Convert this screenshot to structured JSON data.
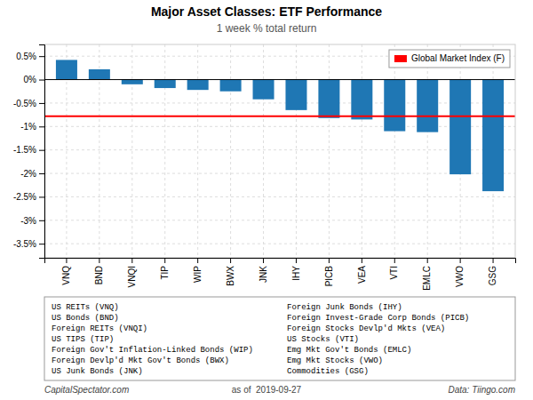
{
  "chart_data": {
    "type": "bar",
    "title": "Major Asset Classes: ETF Performance",
    "subtitle": "1 week % total return",
    "categories": [
      "VNQ",
      "BND",
      "VNQI",
      "TIP",
      "WIP",
      "BWX",
      "JNK",
      "IHY",
      "PICB",
      "VEA",
      "VTI",
      "EMLC",
      "VWO",
      "GSG"
    ],
    "values": [
      0.42,
      0.22,
      -0.1,
      -0.18,
      -0.22,
      -0.25,
      -0.42,
      -0.65,
      -0.82,
      -0.85,
      -1.1,
      -1.12,
      -2.02,
      -2.38
    ],
    "ylim": [
      -3.8,
      0.75
    ],
    "yticks": [
      {
        "value": 0.5,
        "label": "0.5%"
      },
      {
        "value": 0.0,
        "label": "0%"
      },
      {
        "value": -0.5,
        "label": "-0.5%"
      },
      {
        "value": -1.0,
        "label": "-1%"
      },
      {
        "value": -1.5,
        "label": "-1.5%"
      },
      {
        "value": -2.0,
        "label": "-2%"
      },
      {
        "value": -2.5,
        "label": "-2.5%"
      },
      {
        "value": -3.0,
        "label": "-3%"
      },
      {
        "value": -3.5,
        "label": "-3.5%"
      }
    ],
    "grid": true,
    "legend": "upper right",
    "reference_line": {
      "name": "Global Market Index (F)",
      "value": -0.78,
      "color": "#ff0000"
    },
    "annotations": [
      "US REITs (VNQ)",
      "US Bonds (BND)",
      "Foreign REITs (VNQI)",
      "US TIPS (TIP)",
      "Foreign Gov't Inflation-Linked Bonds (WIP)",
      "Foreign Devlp'd Mkt Gov't Bonds (BWX)",
      "US Junk Bonds (JNK)",
      "Foreign Junk Bonds (IHY)",
      "Foreign Invest-Grade Corp Bonds (PICB)",
      "Foreign Stocks Devlp'd Mkts (VEA)",
      "US Stocks (VTI)",
      "Emg Mkt Gov't Bonds (EMLC)",
      "Emg Mkt Stocks (VWO)",
      "Commodities (GSG)"
    ],
    "footer": [
      "CapitalSpectator.com",
      "as of  2019-09-27",
      "Data: Tiingo.com"
    ]
  }
}
